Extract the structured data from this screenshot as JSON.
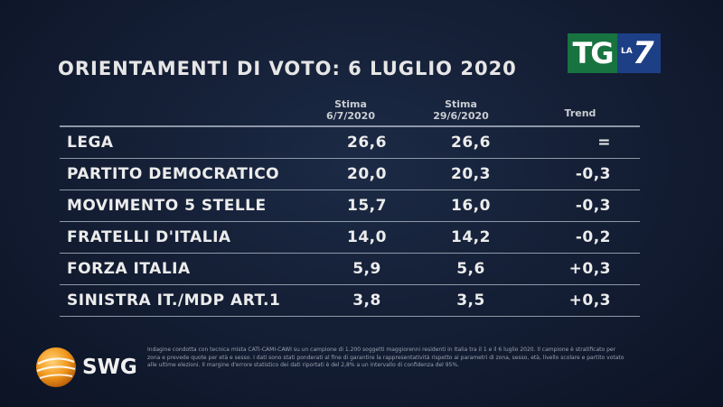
{
  "logo": {
    "tg": "TG",
    "la": "LA",
    "seven": "7"
  },
  "title": "ORIENTAMENTI DI VOTO: 6 LUGLIO 2020",
  "columns": {
    "estimate_1": [
      "Stima",
      "6/7/2020"
    ],
    "estimate_2": [
      "Stima",
      "29/6/2020"
    ],
    "trend": "Trend"
  },
  "rows": [
    {
      "party": "LEGA",
      "v1": "26,6",
      "v2": "26,6",
      "trend": "="
    },
    {
      "party": "PARTITO DEMOCRATICO",
      "v1": "20,0",
      "v2": "20,3",
      "trend": "-0,3"
    },
    {
      "party": "MOVIMENTO 5 STELLE",
      "v1": "15,7",
      "v2": "16,0",
      "trend": "-0,3"
    },
    {
      "party": "FRATELLI D'ITALIA",
      "v1": "14,0",
      "v2": "14,2",
      "trend": "-0,2"
    },
    {
      "party": "FORZA ITALIA",
      "v1": "5,9",
      "v2": "5,6",
      "trend": "+0,3"
    },
    {
      "party": "SINISTRA IT./MDP ART.1",
      "v1": "3,8",
      "v2": "3,5",
      "trend": "+0,3"
    }
  ],
  "swg_label": "SWG",
  "footnote": "Indagine condotta con tecnica mista CATI-CAMI-CAWI su un campione di 1.200 soggetti maggiorenni residenti in Italia tra il 1 e il 6 luglio 2020. Il campione è stratificato per zona e prevede quote per età e sesso. I dati sono stati ponderati al fine di garantire la rappresentatività rispetto ai parametri di zona, sesso, età, livello scolare e partito votato alle ultime elezioni. Il margine d'errore statistico dei dati riportati è del 2,8% a un intervallo di confidenza del 95%.",
  "colors": {
    "background": "#131d33",
    "tg_green": "#17733f",
    "la7_blue": "#1d3f86",
    "swg_orange": "#f29a1e"
  }
}
